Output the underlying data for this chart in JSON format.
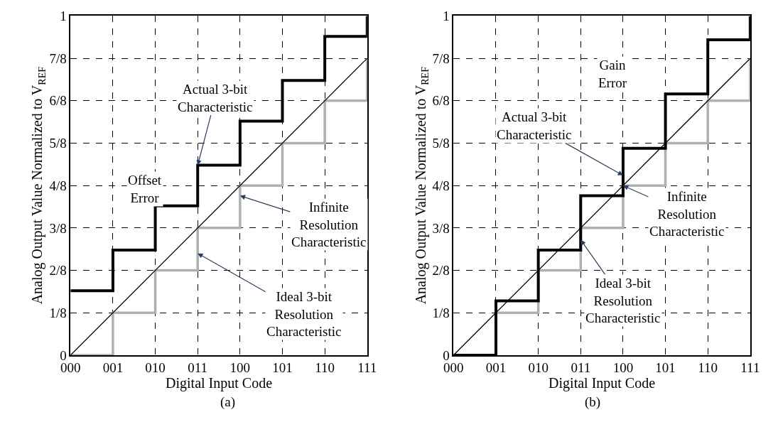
{
  "chart_data": [
    {
      "type": "step",
      "xlabel": "Digital Input Code",
      "ylabel": "Analog Output Value Normalized to V$_{REF}$",
      "categories": [
        "000",
        "001",
        "010",
        "011",
        "100",
        "101",
        "110",
        "111"
      ],
      "ylim": [
        0,
        1
      ],
      "yticks": [
        0,
        {
          "value": 0.125,
          "label": "1/8"
        },
        {
          "value": 0.25,
          "label": "2/8"
        },
        {
          "value": 0.375,
          "label": "3/8"
        },
        {
          "value": 0.5,
          "label": "4/8"
        },
        {
          "value": 0.625,
          "label": "5/8"
        },
        {
          "value": 0.75,
          "label": "6/8"
        },
        {
          "value": 0.875,
          "label": "7/8"
        },
        1
      ],
      "grid": true,
      "series": [
        {
          "color": "#b0b0b0",
          "values": [
            0,
            0.125,
            0.25,
            0.375,
            0.5,
            0.625,
            0.75,
            0.875
          ]
        },
        {
          "type": "line",
          "color": "#000000",
          "x": [
            "000",
            "111"
          ],
          "values": [
            0,
            0.875
          ]
        },
        {
          "color": "#000000",
          "values": [
            0.19,
            0.31,
            0.44,
            0.56,
            0.69,
            0.81,
            0.94,
            1
          ]
        }
      ],
      "annotations": [
        {
          "text": "Actual 3-bit\nCharacteristic",
          "x": "011",
          "y": 0.56
        },
        "Offset\nError",
        {
          "text": "Infinite\nResolution\nCharacteristic",
          "x": "100",
          "y": 0.47
        },
        {
          "text": "Ideal 3-bit\nResolution\nCharacteristic",
          "x": "011",
          "y": 0.3
        },
        "(a)"
      ]
    },
    {
      "type": "step",
      "xlabel": "Digital Input Code",
      "ylabel": "Analog Output Value Normalized to V$_{REF}$",
      "categories": [
        "000",
        "001",
        "010",
        "011",
        "100",
        "101",
        "110",
        "111"
      ],
      "ylim": [
        0,
        1
      ],
      "yticks": [
        0,
        {
          "value": 0.125,
          "label": "1/8"
        },
        {
          "value": 0.25,
          "label": "2/8"
        },
        {
          "value": 0.375,
          "label": "3/8"
        },
        {
          "value": 0.5,
          "label": "4/8"
        },
        {
          "value": 0.625,
          "label": "5/8"
        },
        {
          "value": 0.75,
          "label": "6/8"
        },
        {
          "value": 0.875,
          "label": "7/8"
        },
        1
      ],
      "grid": true,
      "series": [
        {
          "color": "#b0b0b0",
          "values": [
            0,
            0.125,
            0.25,
            0.375,
            0.5,
            0.625,
            0.75,
            0.875
          ]
        },
        {
          "type": "line",
          "color": "#000000",
          "x": [
            "000",
            "111"
          ],
          "values": [
            0,
            0.875
          ]
        },
        {
          "color": "#000000",
          "values": [
            0,
            0.16,
            0.31,
            0.47,
            0.61,
            0.77,
            0.93,
            1
          ]
        }
      ],
      "annotations": [
        "Gain\nError",
        {
          "text": "Actual 3-bit\nCharacteristic",
          "x": "100",
          "y": 0.53
        },
        {
          "text": "Infinite\nResolution\nCharacteristic",
          "x": "100",
          "y": 0.5
        },
        {
          "text": "Ideal 3-bit\nResolution\nCharacteristic",
          "x": "011",
          "y": 0.34
        },
        "(b)"
      ]
    }
  ]
}
